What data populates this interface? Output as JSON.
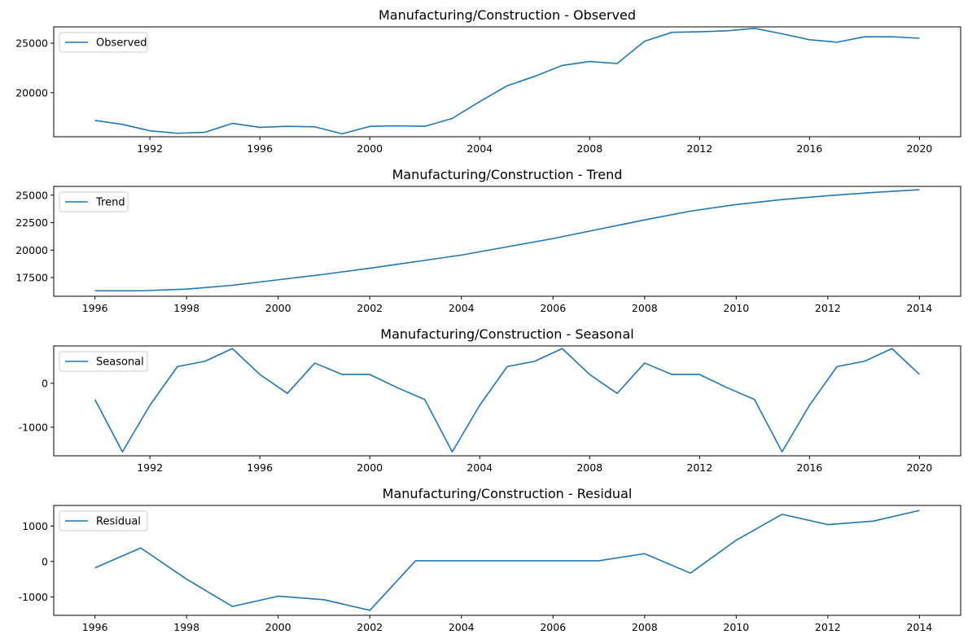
{
  "chart_data": [
    {
      "type": "line",
      "title": "Manufacturing/Construction  - Observed",
      "legend": "top-left",
      "xlim": [
        1988.5,
        2021.5
      ],
      "ylim": [
        15550,
        26650
      ],
      "xticks": [
        1992,
        1996,
        2000,
        2004,
        2008,
        2012,
        2016,
        2020
      ],
      "yticks": [
        20000,
        25000
      ],
      "series": [
        {
          "name": "Observed",
          "color": "#1f77b4",
          "x": [
            1990,
            1991,
            1992,
            1993,
            1994,
            1995,
            1996,
            1997,
            1998,
            1999,
            2000,
            2001,
            2002,
            2003,
            2004,
            2005,
            2006,
            2007,
            2008,
            2009,
            2010,
            2011,
            2012,
            2013,
            2014,
            2015,
            2016,
            2017,
            2018,
            2019,
            2020
          ],
          "y": [
            17200,
            16800,
            16150,
            15900,
            16000,
            16900,
            16500,
            16600,
            16550,
            15850,
            16600,
            16650,
            16600,
            17400,
            19100,
            20700,
            21650,
            22750,
            23150,
            22950,
            25200,
            26100,
            26150,
            26250,
            26500,
            25950,
            25350,
            25100,
            25650,
            25650,
            25500
          ]
        }
      ]
    },
    {
      "type": "line",
      "title": "Manufacturing/Construction  - Trend",
      "legend": "top-left",
      "xlim": [
        1995.1,
        2014.9
      ],
      "ylim": [
        15800,
        25800
      ],
      "xticks": [
        1996,
        1998,
        2000,
        2002,
        2004,
        2006,
        2008,
        2010,
        2012,
        2014
      ],
      "yticks": [
        17500,
        20000,
        22500,
        25000
      ],
      "series": [
        {
          "name": "Trend",
          "color": "#1f77b4",
          "x": [
            1996,
            1997,
            1998,
            1999,
            2000,
            2001,
            2002,
            2003,
            2004,
            2005,
            2006,
            2007,
            2008,
            2009,
            2010,
            2011,
            2012,
            2013,
            2014
          ],
          "y": [
            16300,
            16300,
            16450,
            16800,
            17300,
            17800,
            18350,
            18950,
            19550,
            20300,
            21050,
            21900,
            22750,
            23550,
            24150,
            24600,
            24950,
            25250,
            25500
          ]
        }
      ]
    },
    {
      "type": "line",
      "title": "Manufacturing/Construction  - Seasonal",
      "legend": "top-left",
      "xlim": [
        1988.5,
        2021.5
      ],
      "ylim": [
        -1650,
        850
      ],
      "xticks": [
        1992,
        1996,
        2000,
        2004,
        2008,
        2012,
        2016,
        2020
      ],
      "yticks": [
        -1000,
        0
      ],
      "series": [
        {
          "name": "Seasonal",
          "color": "#1f77b4",
          "x": [
            1990,
            1991,
            1992,
            1993,
            1994,
            1995,
            1996,
            1997,
            1998,
            1999,
            2000,
            2001,
            2002,
            2003,
            2004,
            2005,
            2006,
            2007,
            2008,
            2009,
            2010,
            2011,
            2012,
            2013,
            2014,
            2015,
            2016,
            2017,
            2018,
            2019,
            2020
          ],
          "y": [
            -370,
            -1560,
            -500,
            380,
            500,
            790,
            200,
            -230,
            460,
            200,
            200,
            -100,
            -370,
            -1560,
            -500,
            380,
            500,
            790,
            200,
            -230,
            460,
            200,
            200,
            -100,
            -370,
            -1560,
            -500,
            380,
            500,
            790,
            200
          ]
        }
      ]
    },
    {
      "type": "line",
      "title": "Manufacturing/Construction  - Residual",
      "legend": "top-left",
      "xlim": [
        1995.1,
        2014.9
      ],
      "ylim": [
        -1520,
        1580
      ],
      "xticks": [
        1996,
        1998,
        2000,
        2002,
        2004,
        2006,
        2008,
        2010,
        2012,
        2014
      ],
      "yticks": [
        -1000,
        0,
        1000
      ],
      "series": [
        {
          "name": "Residual",
          "color": "#1f77b4",
          "x": [
            1996,
            1997,
            1998,
            1999,
            2000,
            2001,
            2002,
            2003,
            2004,
            2005,
            2006,
            2007,
            2008,
            2009,
            2010,
            2011,
            2012,
            2013,
            2014
          ],
          "y": [
            -180,
            380,
            -500,
            -1270,
            -980,
            -1080,
            -1380,
            20,
            20,
            20,
            20,
            20,
            220,
            -330,
            600,
            1330,
            1040,
            1140,
            1440
          ]
        }
      ]
    }
  ]
}
